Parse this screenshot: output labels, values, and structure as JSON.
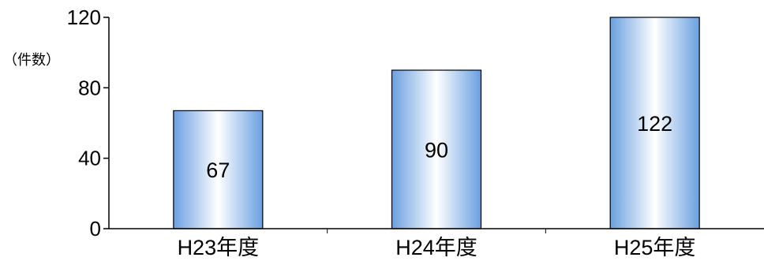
{
  "chart_data": {
    "type": "bar",
    "categories": [
      "H23年度",
      "H24年度",
      "H25年度"
    ],
    "values": [
      67,
      90,
      122
    ],
    "data_labels": [
      "67",
      "90",
      "122"
    ],
    "y_unit_label": "（件数）",
    "yticks": [
      0,
      40,
      80,
      120
    ],
    "ylim": [
      0,
      120
    ],
    "grid": false,
    "legend": "none",
    "bar_colors": {
      "edge": "#6a9fe0",
      "center": "#ffffff",
      "outline": "#000000"
    }
  }
}
